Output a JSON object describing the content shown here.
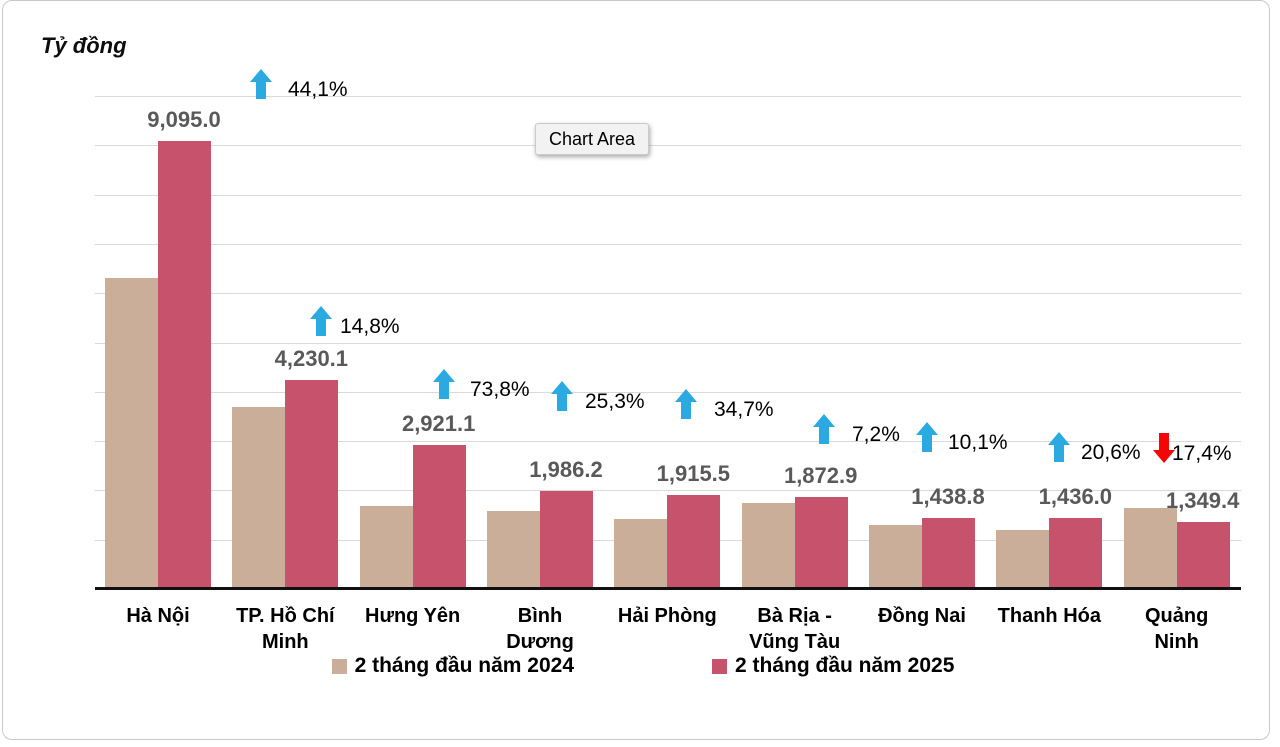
{
  "window": {
    "background": "#ffffff",
    "card_border": "#C9C9C9"
  },
  "title": "Tỷ đồng",
  "tooltip": {
    "label": "Chart Area"
  },
  "legend": {
    "items": [
      {
        "label": "2 tháng đầu năm 2024",
        "color": "#CBAE9A"
      },
      {
        "label": "2 tháng đầu năm 2025",
        "color": "#C6526B"
      }
    ]
  },
  "chart_data": {
    "type": "bar",
    "unit_label": "Tỷ đồng",
    "categories": [
      "Hà Nội",
      "TP. Hồ Chí Minh",
      "Hưng Yên",
      "Bình Dương",
      "Hải Phòng",
      "Bà Rịa - Vũng Tàu",
      "Đồng Nai",
      "Thanh Hóa",
      "Quảng Ninh"
    ],
    "category_label_lines": [
      [
        "Hà Nội"
      ],
      [
        "TP. Hồ Chí",
        "Minh"
      ],
      [
        "Hưng Yên"
      ],
      [
        "Bình",
        "Dương"
      ],
      [
        "Hải Phòng"
      ],
      [
        "Bà Rịa -",
        "Vũng Tàu"
      ],
      [
        "Đồng Nai"
      ],
      [
        "Thanh Hóa"
      ],
      [
        "Quảng",
        "Ninh"
      ]
    ],
    "series": [
      {
        "name": "2 tháng đầu năm 2024",
        "color": "#CBAE9A",
        "values": [
          6310,
          3685,
          1680,
          1585,
          1420,
          1747,
          1307,
          1191,
          1634
        ],
        "values_estimated": true
      },
      {
        "name": "2 tháng đầu năm 2025",
        "color": "#C6526B",
        "values": [
          9095.0,
          4230.1,
          2921.1,
          1986.2,
          1915.5,
          1872.9,
          1438.8,
          1436.0,
          1349.4
        ],
        "value_labels": [
          "9,095.0",
          "4,230.1",
          "2,921.1",
          "1,986.2",
          "1,915.5",
          "1,872.9",
          "1,438.8",
          "1,436.0",
          "1,349.4"
        ]
      }
    ],
    "pct_changes": [
      {
        "label": "44,1%",
        "direction": "up"
      },
      {
        "label": "14,8%",
        "direction": "up"
      },
      {
        "label": "73,8%",
        "direction": "up"
      },
      {
        "label": "25,3%",
        "direction": "up"
      },
      {
        "label": "34,7%",
        "direction": "up"
      },
      {
        "label": "7,2%",
        "direction": "up"
      },
      {
        "label": "10,1%",
        "direction": "up"
      },
      {
        "label": "20,6%",
        "direction": "up"
      },
      {
        "label": "17,4%",
        "direction": "down"
      }
    ],
    "colors": {
      "up_arrow": "#2BAAE2",
      "down_arrow": "#F50505",
      "value_label": "#595959",
      "gridline": "#D9D9D9",
      "axis_line": "#111111"
    },
    "ylim": [
      0,
      10000
    ],
    "gridline_step": 1000,
    "grid": true,
    "legend_position": "bottom"
  }
}
